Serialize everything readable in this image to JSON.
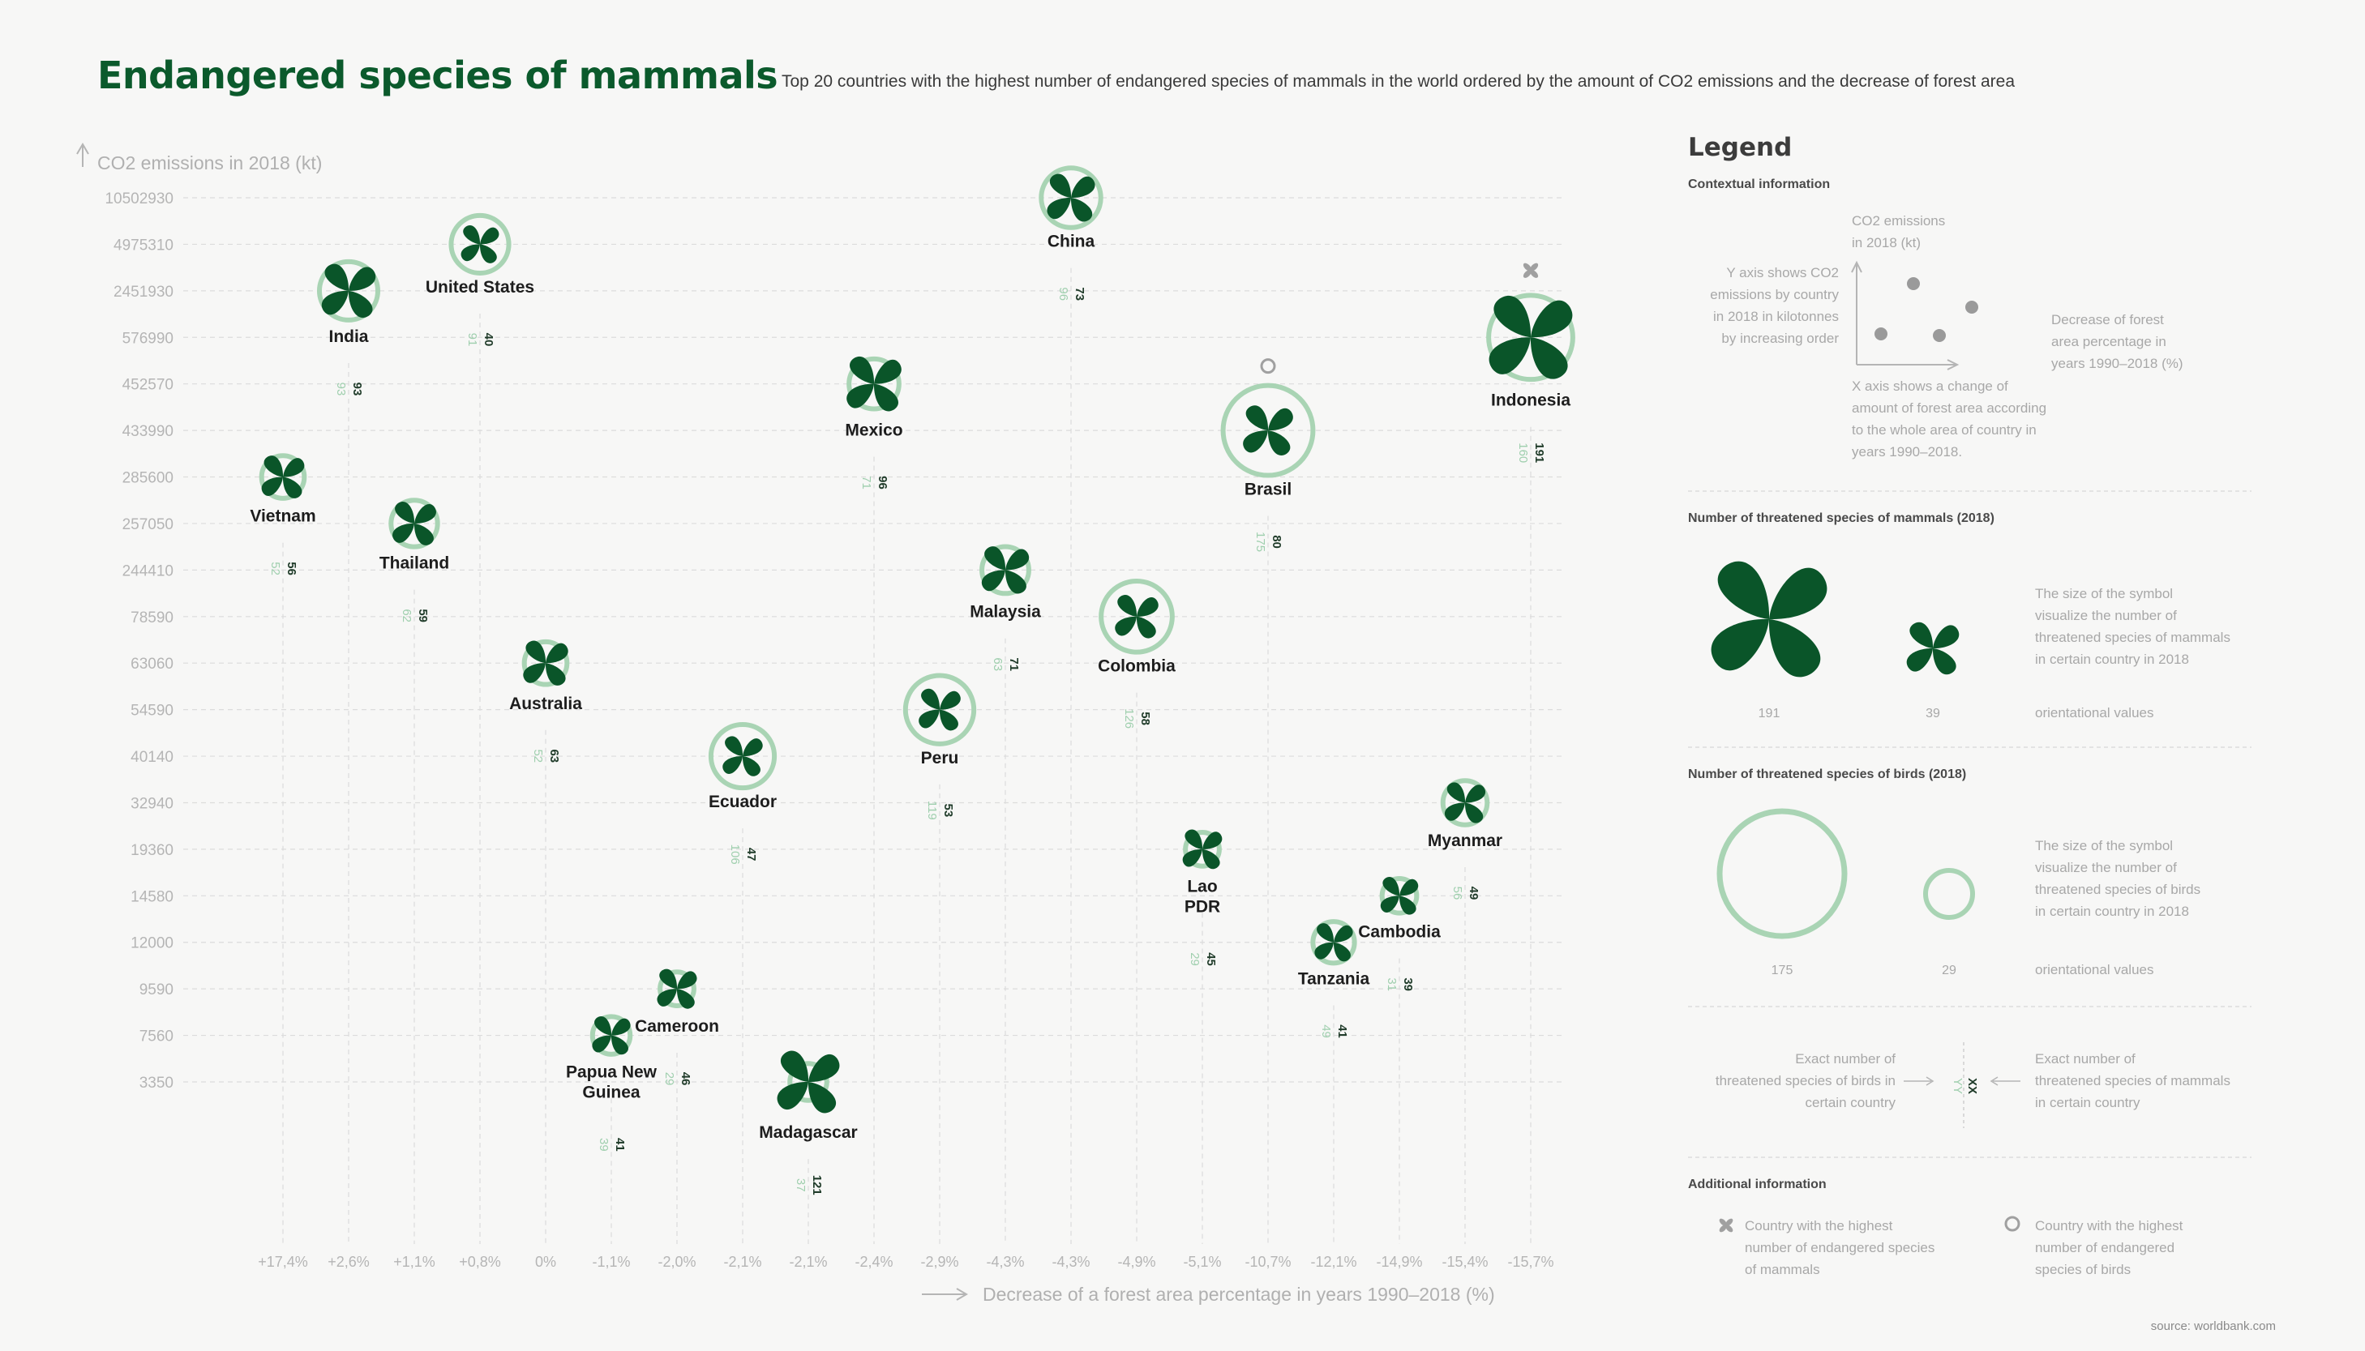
{
  "title": "Endangered species of mammals",
  "subtitle": "Top 20 countries with the highest number of endangered species of mammals in the world ordered by the amount of CO2 emissions and the decrease of forest area",
  "source": "source: worldbank.com",
  "colors": {
    "title": "#0b5a2c",
    "flower": "#0a5529",
    "ring": "#a9d4b4",
    "mammal_value": "#1f3b29",
    "bird_value": "#9fcfae",
    "grid": "#dcdcdc"
  },
  "chart_data": {
    "type": "scatter",
    "ylabel": "CO2 emissions in 2018 (kt)",
    "xlabel": "Decrease of a forest area percentage in years 1990–2018 (%)",
    "y_ticks": [
      "10502930",
      "4975310",
      "2451930",
      "576990",
      "452570",
      "433990",
      "285600",
      "257050",
      "244410",
      "78590",
      "63060",
      "54590",
      "40140",
      "32940",
      "19360",
      "14580",
      "12000",
      "9590",
      "7560",
      "3350"
    ],
    "x_ticks": [
      "+17,4%",
      "+2,6%",
      "+1,1%",
      "+0,8%",
      "0%",
      "-1,1%",
      "-2,0%",
      "-2,1%",
      "-2,1%",
      "-2,4%",
      "-2,9%",
      "-4,3%",
      "-4,3%",
      "-4,9%",
      "-5,1%",
      "-10,7%",
      "-12,1%",
      "-14,9%",
      "-15,4%",
      "-15,7%"
    ],
    "grid": "dashed",
    "points": [
      {
        "name": "Vietnam",
        "x": "+17,4%",
        "y": "285600",
        "mammals": 56,
        "birds": 52
      },
      {
        "name": "India",
        "x": "+2,6%",
        "y": "2451930",
        "mammals": 93,
        "birds": 93
      },
      {
        "name": "Thailand",
        "x": "+1,1%",
        "y": "257050",
        "mammals": 59,
        "birds": 62
      },
      {
        "name": "United States",
        "x": "+0,8%",
        "y": "4975310",
        "mammals": 40,
        "birds": 91
      },
      {
        "name": "Australia",
        "x": "0%",
        "y": "63060",
        "mammals": 63,
        "birds": 52
      },
      {
        "name": "Papua New Guinea",
        "x": "-1,1%",
        "y": "7560",
        "mammals": 41,
        "birds": 39
      },
      {
        "name": "Cameroon",
        "x": "-2,0%",
        "y": "9590",
        "mammals": 46,
        "birds": 29
      },
      {
        "name": "Ecuador",
        "x": "-2,1%",
        "y": "40140",
        "mammals": 47,
        "birds": 106
      },
      {
        "name": "Madagascar",
        "x": "-2,1%",
        "y": "3350",
        "mammals": 121,
        "birds": 37
      },
      {
        "name": "Mexico",
        "x": "-2,4%",
        "y": "452570",
        "mammals": 96,
        "birds": 71
      },
      {
        "name": "Peru",
        "x": "-2,9%",
        "y": "54590",
        "mammals": 53,
        "birds": 119
      },
      {
        "name": "Malaysia",
        "x": "-4,3%",
        "y": "244410",
        "mammals": 71,
        "birds": 63
      },
      {
        "name": "China",
        "x": "-4,3%",
        "y": "10502930",
        "mammals": 73,
        "birds": 96
      },
      {
        "name": "Colombia",
        "x": "-4,9%",
        "y": "78590",
        "mammals": 58,
        "birds": 126
      },
      {
        "name": "Lao PDR",
        "x": "-5,1%",
        "y": "19360",
        "mammals": 45,
        "birds": 29
      },
      {
        "name": "Brasil",
        "x": "-10,7%",
        "y": "433990",
        "mammals": 80,
        "birds": 175
      },
      {
        "name": "Tanzania",
        "x": "-12,1%",
        "y": "12000",
        "mammals": 41,
        "birds": 49
      },
      {
        "name": "Cambodia",
        "x": "-14,9%",
        "y": "14580",
        "mammals": 39,
        "birds": 31
      },
      {
        "name": "Myanmar",
        "x": "-15,4%",
        "y": "32940",
        "mammals": 49,
        "birds": 56
      },
      {
        "name": "Indonesia",
        "x": "-15,7%",
        "y": "576990",
        "mammals": 191,
        "birds": 160
      }
    ],
    "highest_mammals": "Indonesia",
    "highest_birds": "Brasil"
  },
  "legend": {
    "title": "Legend",
    "contextual": {
      "heading": "Contextual information",
      "y_axis_label": "CO2 emissions\nin 2018 (kt)",
      "y_axis_text": "Y axis shows CO2\nemissions by country\nin 2018 in kilotonnes\nby increasing order",
      "x_axis_label": "Decrease of forest\narea percentage in\nyears 1990–2018 (%)",
      "x_axis_text": "X axis shows a change of\namount of forest area according\nto the whole area of country in\nyears 1990–2018."
    },
    "mammals": {
      "heading": "Number of threatened species of mammals (2018)",
      "text": "The size of the symbol\nvisualize the number of\nthreatened species of mammals\nin certain country in 2018",
      "big_value": "191",
      "small_value": "39",
      "note": "orientational values"
    },
    "birds": {
      "heading": "Number of threatened species of birds (2018)",
      "text": "The size of the symbol\nvisualize the number of\nthreatened species of birds\nin certain country in 2018",
      "big_value": "175",
      "small_value": "29",
      "note": "orientational values"
    },
    "exact": {
      "birds_text": "Exact number of\nthreatened species of birds in\ncertain country",
      "mammals_text": "Exact number of\nthreatened species of mammals\nin certain country",
      "birds_marker": "YY",
      "mammals_marker": "XX"
    },
    "additional": {
      "heading": "Additional information",
      "mammals_text": "Country with the highest\nnumber of endangered species\nof mammals",
      "birds_text": "Country with the highest\nnumber of endangered\nspecies of birds"
    }
  }
}
